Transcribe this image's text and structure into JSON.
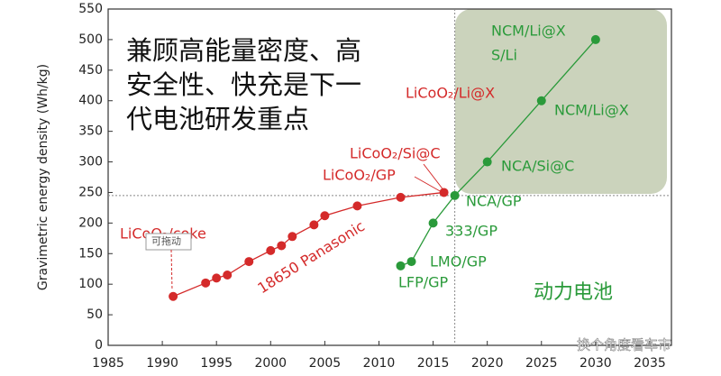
{
  "chart_data": {
    "type": "line",
    "title_lines": [
      "兼顾高能量密度、高",
      "安全性、快充是下一",
      "代电池研发重点"
    ],
    "y_label": "Gravimetric energy density (Wh/kg)",
    "xlim": [
      1985,
      2037
    ],
    "xticks": [
      1985,
      1990,
      1995,
      2000,
      2005,
      2010,
      2015,
      2020,
      2025,
      2030,
      2035
    ],
    "ylim": [
      0,
      550
    ],
    "yticks": [
      0,
      50,
      100,
      150,
      200,
      250,
      300,
      350,
      400,
      450,
      500,
      550
    ],
    "series": [
      {
        "name": "LiCoO₂",
        "color": "#d42a2a",
        "x": [
          1991,
          1994,
          1995,
          1996,
          1998,
          2000,
          2001,
          2002,
          2004,
          2005,
          2008,
          2012,
          2016
        ],
        "values": [
          80,
          102,
          110,
          115,
          137,
          155,
          163,
          178,
          197,
          212,
          228,
          242,
          250
        ]
      },
      {
        "name": "动力电池",
        "color": "#2a9a3a",
        "x": [
          2012,
          2013,
          2015,
          2017,
          2020,
          2025,
          2030
        ],
        "values": [
          130,
          137,
          200,
          245,
          300,
          400,
          500
        ]
      }
    ],
    "annotations": [
      "NCM/Li@X",
      "S/Li",
      "LiCoO₂/Li@X",
      "NCM/Li@X",
      "LiCoO₂/Si@C",
      "NCA/Si@C",
      "LiCoO₂/GP",
      "NCA/GP",
      "333/GP",
      "LMO/GP",
      "LFP/GP",
      "LiCoO₂/coke",
      "18650 Panasonic",
      "可拖动"
    ],
    "watermark": "换个角度看车市",
    "ref_x": 2017,
    "ref_y": 245
  }
}
